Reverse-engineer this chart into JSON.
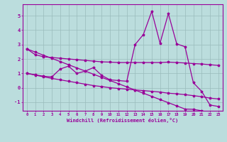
{
  "x": [
    0,
    1,
    2,
    3,
    4,
    5,
    6,
    7,
    8,
    9,
    10,
    11,
    12,
    13,
    14,
    15,
    16,
    17,
    18,
    19,
    20,
    21,
    22,
    23
  ],
  "line1": [
    2.7,
    2.3,
    2.15,
    2.1,
    2.05,
    2.0,
    1.95,
    1.9,
    1.85,
    1.8,
    1.78,
    1.75,
    1.75,
    1.75,
    1.75,
    1.75,
    1.75,
    1.78,
    1.75,
    1.72,
    1.68,
    1.65,
    1.6,
    1.55
  ],
  "line2": [
    1.0,
    0.9,
    0.8,
    0.75,
    1.3,
    1.5,
    1.0,
    1.15,
    1.4,
    0.85,
    0.55,
    0.5,
    0.45,
    3.0,
    3.7,
    5.3,
    3.1,
    5.15,
    3.05,
    2.85,
    0.35,
    -0.25,
    -1.2,
    -1.3
  ],
  "line3": [
    1.0,
    0.88,
    0.76,
    0.65,
    0.55,
    0.45,
    0.35,
    0.25,
    0.15,
    0.08,
    0.0,
    -0.05,
    -0.1,
    -0.15,
    -0.2,
    -0.25,
    -0.3,
    -0.38,
    -0.42,
    -0.48,
    -0.55,
    -0.62,
    -0.72,
    -0.78
  ],
  "line4": [
    2.7,
    2.48,
    2.26,
    2.04,
    1.82,
    1.6,
    1.38,
    1.16,
    0.94,
    0.72,
    0.5,
    0.28,
    0.06,
    -0.16,
    -0.38,
    -0.6,
    -0.82,
    -1.04,
    -1.26,
    -1.48,
    -1.5,
    -1.6,
    -1.72,
    -1.85
  ],
  "color": "#990099",
  "bg_color": "#bbdddd",
  "grid_color": "#99bbbb",
  "ylim": [
    -1.6,
    5.8
  ],
  "yticks": [
    -1,
    0,
    1,
    2,
    3,
    4,
    5
  ],
  "xlabel": "Windchill (Refroidissement éolien,°C)"
}
